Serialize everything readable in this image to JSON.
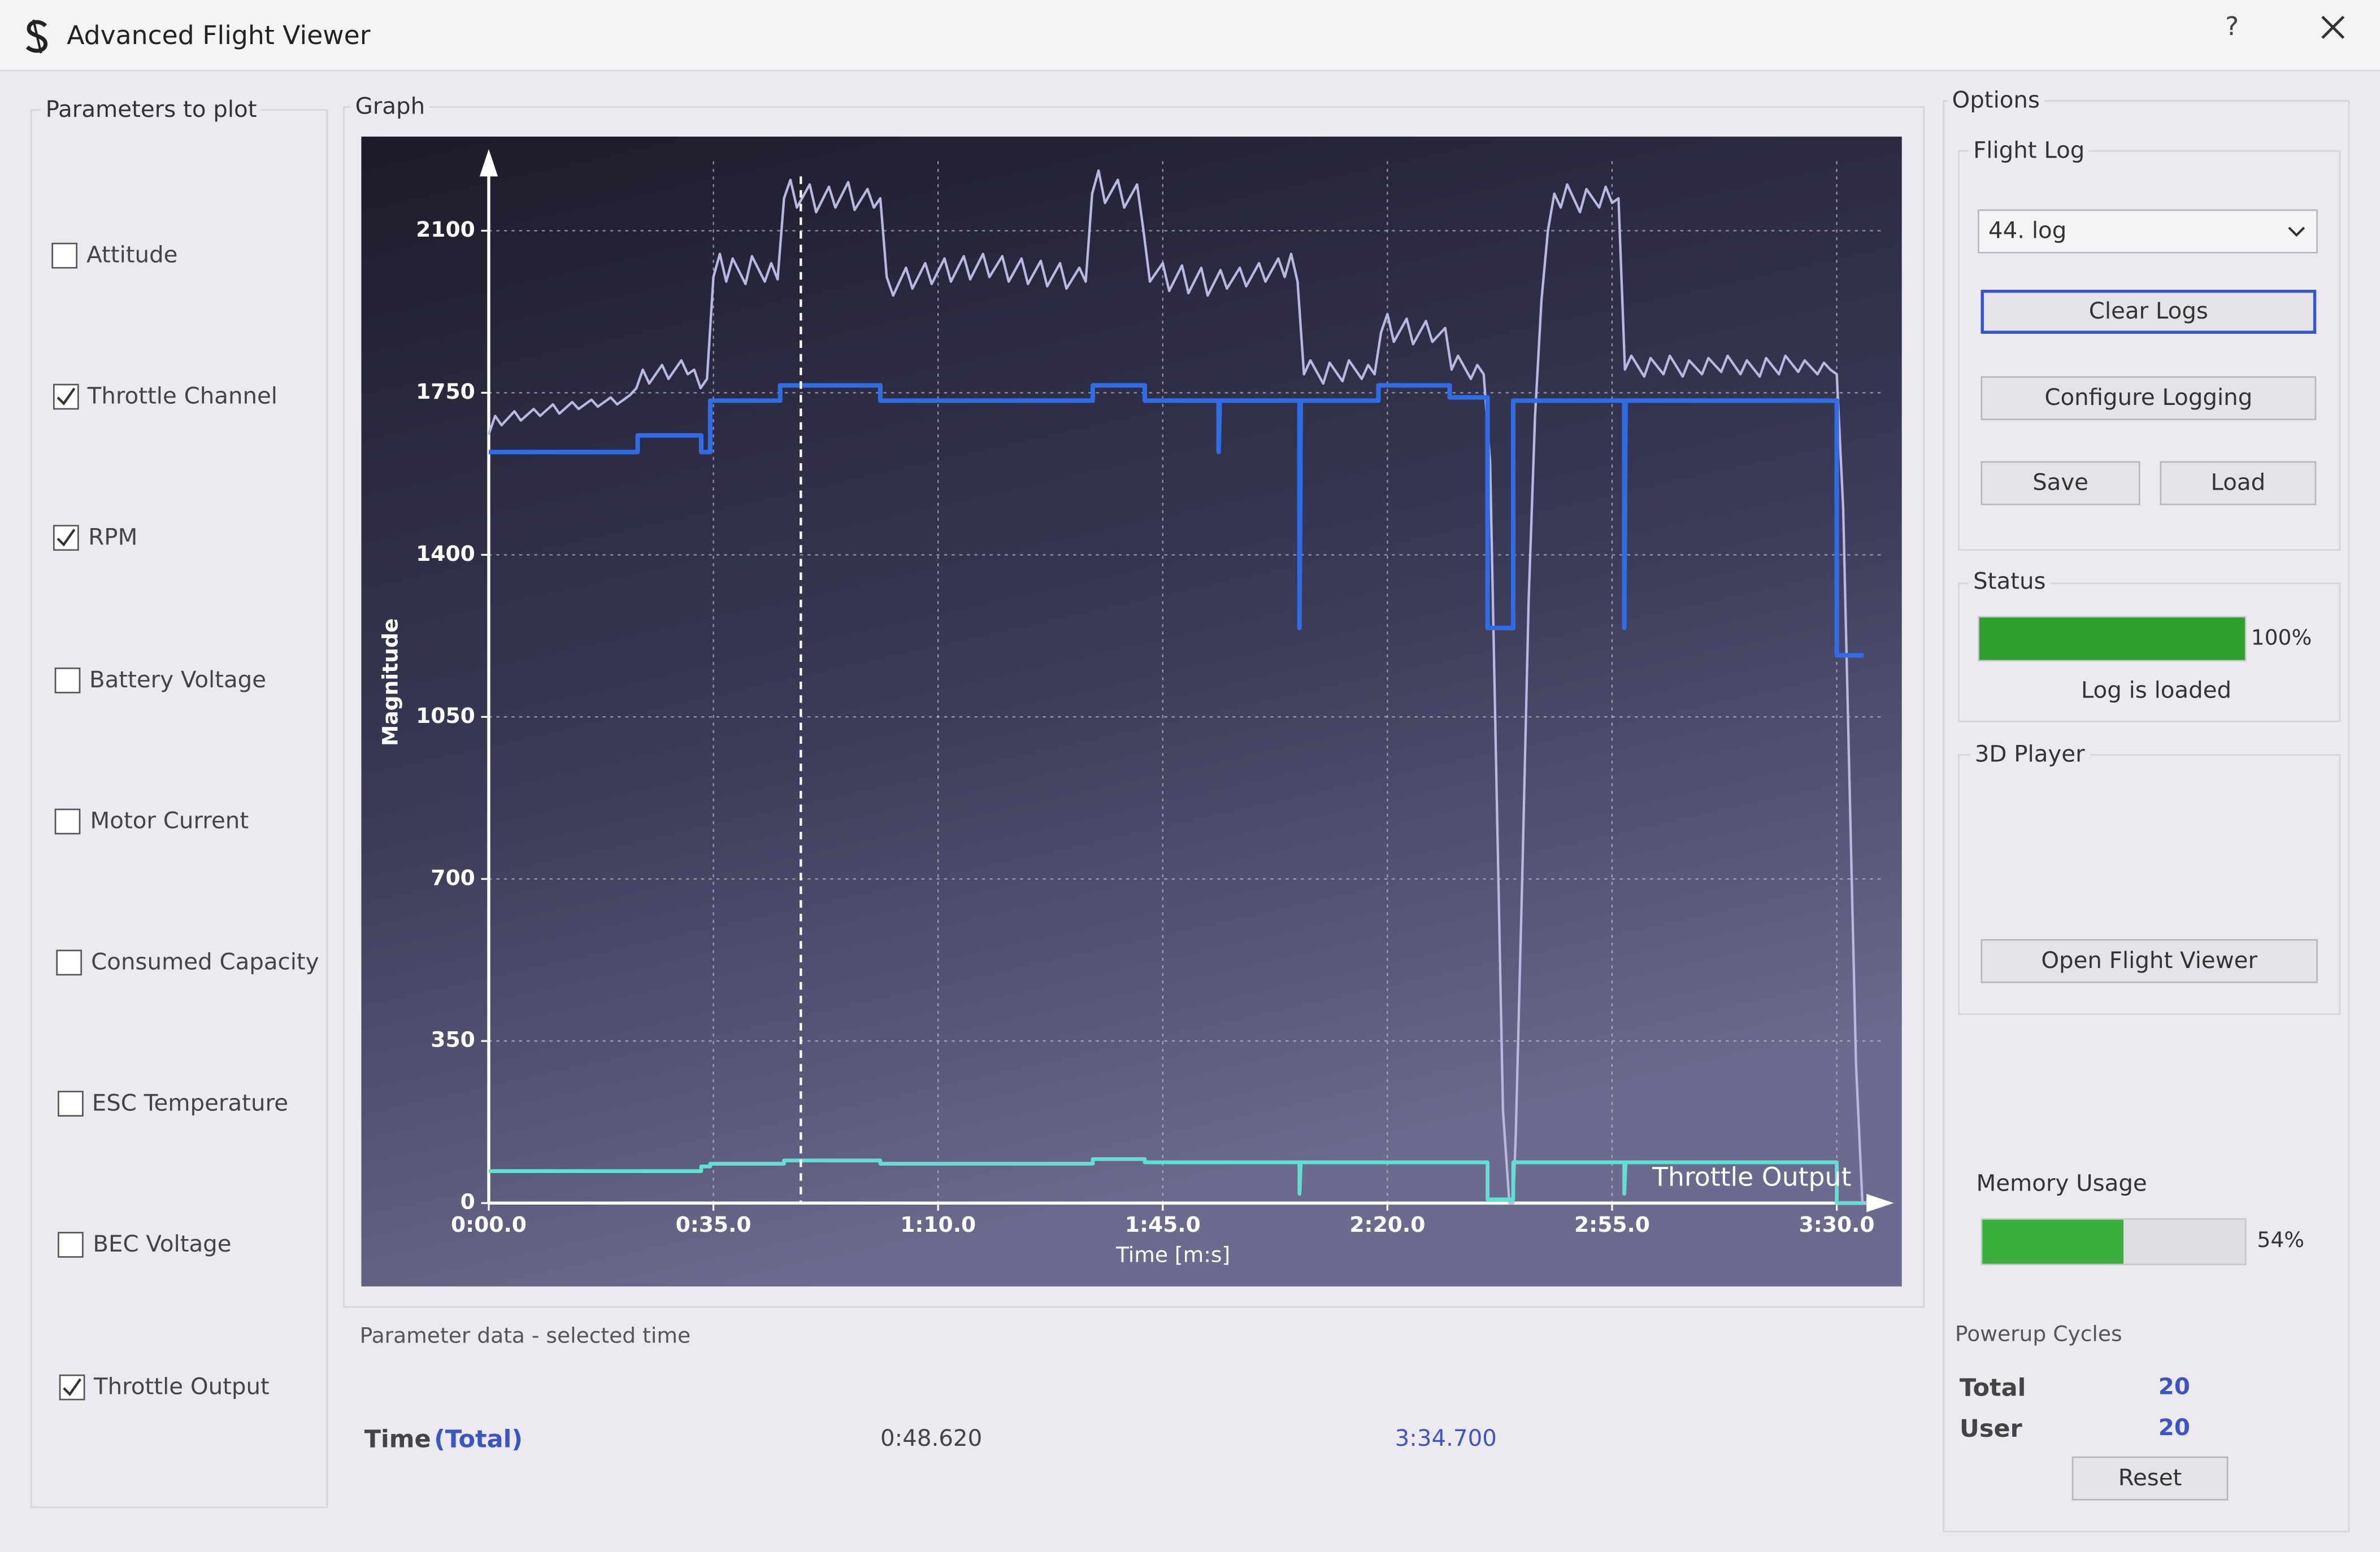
{
  "window": {
    "title": "Advanced Flight Viewer",
    "help": "?"
  },
  "parameters": {
    "title": "Parameters to plot",
    "items": [
      {
        "label": "Attitude",
        "checked": false
      },
      {
        "label": "Throttle Channel",
        "checked": true
      },
      {
        "label": "RPM",
        "checked": true
      },
      {
        "label": "Battery Voltage",
        "checked": false
      },
      {
        "label": "Motor Current",
        "checked": false
      },
      {
        "label": "Consumed Capacity",
        "checked": false
      },
      {
        "label": "ESC Temperature",
        "checked": false
      },
      {
        "label": "BEC Voltage",
        "checked": false
      },
      {
        "label": "Throttle Output",
        "checked": true
      }
    ]
  },
  "graph": {
    "title": "Graph"
  },
  "chart_data": {
    "type": "line",
    "x_label": "Time [m:s]",
    "y_label": "Magnitude",
    "xlim": [
      0,
      217
    ],
    "ylim": [
      0,
      2250
    ],
    "xticks": [
      {
        "value": 0,
        "label": "0:00.0"
      },
      {
        "value": 35,
        "label": "0:35.0"
      },
      {
        "value": 70,
        "label": "1:10.0"
      },
      {
        "value": 105,
        "label": "1:45.0"
      },
      {
        "value": 140,
        "label": "2:20.0"
      },
      {
        "value": 175,
        "label": "2:55.0"
      },
      {
        "value": 210,
        "label": "3:30.0"
      }
    ],
    "yticks": [
      0,
      350,
      700,
      1050,
      1400,
      1750,
      2100
    ],
    "grid": true,
    "cursor": 48.62,
    "series": [
      {
        "name": "RPM",
        "color": "#bab7e2",
        "width": 1.6,
        "x": [
          0,
          1,
          2,
          4,
          5,
          7,
          8,
          10,
          11,
          13,
          14,
          16,
          17,
          19,
          20,
          22,
          23,
          24,
          25,
          27,
          28,
          30,
          31,
          32,
          33,
          34,
          35,
          36,
          37,
          38,
          40,
          41,
          43,
          44,
          45,
          46,
          47,
          48,
          50,
          51,
          53,
          54,
          56,
          57,
          59,
          60,
          61,
          62,
          63,
          65,
          66,
          68,
          69,
          71,
          72,
          74,
          75,
          77,
          78,
          80,
          81,
          83,
          84,
          86,
          87,
          89,
          90,
          92,
          93,
          94,
          95,
          96,
          98,
          99,
          101,
          102,
          103,
          105,
          106,
          108,
          109,
          111,
          112,
          114,
          115,
          117,
          118,
          120,
          121,
          123,
          124,
          125,
          126,
          127,
          128,
          130,
          131,
          133,
          134,
          136,
          137,
          138,
          139,
          140,
          141,
          143,
          144,
          146,
          147,
          149,
          150,
          151,
          153,
          154,
          155,
          156,
          157,
          158,
          159,
          159.6,
          160,
          161,
          162,
          163,
          164,
          165,
          166,
          167,
          168,
          170,
          171,
          173,
          174,
          175,
          176,
          177,
          178,
          180,
          181,
          183,
          184,
          186,
          187,
          189,
          190,
          192,
          193,
          195,
          196,
          198,
          199,
          201,
          202,
          204,
          205,
          207,
          208,
          209,
          210,
          211,
          212,
          213,
          214,
          214.7
        ],
        "values": [
          1660,
          1700,
          1680,
          1710,
          1690,
          1715,
          1700,
          1725,
          1705,
          1730,
          1715,
          1735,
          1720,
          1740,
          1725,
          1745,
          1760,
          1800,
          1770,
          1810,
          1780,
          1820,
          1790,
          1800,
          1760,
          1780,
          2000,
          2050,
          1990,
          2040,
          1985,
          2045,
          1990,
          2030,
          1995,
          2170,
          2210,
          2150,
          2200,
          2140,
          2195,
          2150,
          2205,
          2145,
          2190,
          2150,
          2170,
          2000,
          1960,
          2020,
          1975,
          2030,
          1985,
          2040,
          1990,
          2045,
          1995,
          2050,
          2000,
          2045,
          1990,
          2040,
          1985,
          2035,
          1980,
          2030,
          1975,
          2020,
          1990,
          2180,
          2230,
          2160,
          2210,
          2150,
          2200,
          2100,
          1990,
          2030,
          1970,
          2025,
          1965,
          2020,
          1960,
          2015,
          1975,
          2020,
          1980,
          2030,
          1990,
          2040,
          2000,
          2050,
          1990,
          1790,
          1820,
          1770,
          1815,
          1775,
          1820,
          1780,
          1810,
          1790,
          1880,
          1920,
          1860,
          1910,
          1855,
          1905,
          1860,
          1890,
          1800,
          1830,
          1780,
          1810,
          1790,
          1600,
          900,
          200,
          0,
          0,
          150,
          700,
          1300,
          1700,
          1950,
          2100,
          2180,
          2150,
          2200,
          2140,
          2190,
          2150,
          2195,
          2160,
          2170,
          1800,
          1830,
          1785,
          1825,
          1790,
          1830,
          1785,
          1820,
          1790,
          1825,
          1795,
          1830,
          1790,
          1820,
          1785,
          1825,
          1790,
          1830,
          1795,
          1820,
          1790,
          1815,
          1800,
          1790,
          1500,
          900,
          300,
          0,
          0
        ]
      },
      {
        "name": "Throttle Channel",
        "color": "#2f6ce6",
        "width": 3,
        "x": [
          0,
          23.2,
          23.2,
          33.1,
          33.1,
          34.5,
          34.5,
          45.4,
          45.4,
          61,
          61,
          94.1,
          94.1,
          102.2,
          102.2,
          113.7,
          113.7,
          113.9,
          126.3,
          126.3,
          126.5,
          138.6,
          138.6,
          149.7,
          149.7,
          155.6,
          155.6,
          159.6,
          159.6,
          176.9,
          176.9,
          177.1,
          210,
          210,
          214.2
        ],
        "values": [
          1622,
          1622,
          1658,
          1658,
          1622,
          1622,
          1733,
          1733,
          1766,
          1766,
          1733,
          1733,
          1766,
          1766,
          1733,
          1733,
          1622,
          1733,
          1733,
          1242,
          1733,
          1733,
          1766,
          1766,
          1740,
          1740,
          1242,
          1242,
          1733,
          1733,
          1242,
          1733,
          1733,
          1183,
          1183
        ]
      },
      {
        "name": "Throttle Output",
        "color": "#5fe0d0",
        "width": 2.5,
        "x": [
          0,
          33.1,
          33.1,
          34.5,
          34.5,
          46,
          46,
          61,
          61,
          94.1,
          94.1,
          102.2,
          102.2,
          126.3,
          126.3,
          126.5,
          155.6,
          155.6,
          159.6,
          159.6,
          176.9,
          176.9,
          177.1,
          210,
          210,
          214.2
        ],
        "values": [
          69,
          69,
          79,
          79,
          85,
          85,
          92,
          92,
          85,
          85,
          95,
          95,
          88,
          88,
          20,
          88,
          88,
          8,
          8,
          88,
          88,
          20,
          88,
          88,
          0,
          0
        ]
      }
    ]
  },
  "parameter_data": {
    "title": "Parameter data - selected time",
    "label": "Time",
    "sublabel": "(Total)",
    "selected": "0:48.620",
    "total": "3:34.700"
  },
  "options": {
    "title": "Options",
    "flight_log": {
      "title": "Flight Log",
      "selected": "44. log",
      "clear": "Clear Logs",
      "configure": "Configure Logging",
      "save": "Save",
      "load": "Load"
    },
    "status": {
      "title": "Status",
      "progress": {
        "value": 100,
        "label": "100%"
      },
      "message": "Log is loaded"
    },
    "player": {
      "title": "3D Player",
      "open": "Open Flight Viewer"
    },
    "memory": {
      "title": "Memory Usage",
      "progress": {
        "value": 54,
        "label": "54%"
      }
    },
    "powerup": {
      "title": "Powerup Cycles",
      "total_label": "Total",
      "total": 20,
      "user_label": "User",
      "user": 20,
      "reset": "Reset"
    }
  }
}
